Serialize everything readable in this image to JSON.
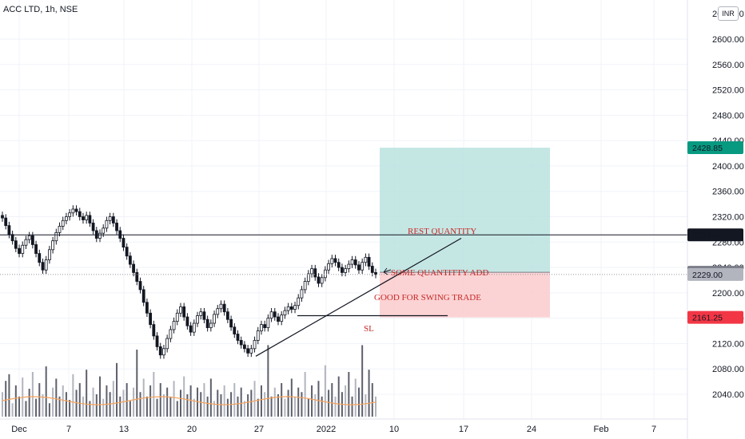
{
  "header": {
    "title": "ACC LTD, 1h, NSE",
    "currency": "INR"
  },
  "chart_data": {
    "type": "candlestick",
    "symbol": "ACC LTD",
    "interval": "1h",
    "exchange": "NSE",
    "ylim": [
      2005,
      2645
    ],
    "y_ticks": [
      "2600.00",
      "2560.00",
      "2520.00",
      "2480.00",
      "2440.00",
      "2400.00",
      "2360.00",
      "2320.00",
      "2280.00",
      "2240.00",
      "2200.00",
      "2160.00",
      "2120.00",
      "2080.00",
      "2040.00"
    ],
    "x_ticks": [
      "Dec",
      "7",
      "13",
      "20",
      "27",
      "2022",
      "10",
      "17",
      "24",
      "Feb",
      "7"
    ],
    "price_labels": [
      {
        "value": "2428.85",
        "color": "#089981"
      },
      {
        "value": "2291.40",
        "color": "#131722"
      },
      {
        "value": "2232.40",
        "color": "#787b86"
      },
      {
        "value": "2229.00",
        "color": "#b2b5be"
      },
      {
        "value": "2161.25",
        "color": "#f23645"
      }
    ],
    "horizontal_line": 2291.4,
    "position": {
      "entry": 2232.4,
      "target": 2428.85,
      "stop": 2161.25,
      "target_color": "#b2dfdb",
      "stop_color": "#fccbcd"
    },
    "annotations": [
      {
        "text": "REST QUANTITY",
        "color": "#c62828"
      },
      {
        "text": "SOME QUANTITTY ADD",
        "color": "#c62828"
      },
      {
        "text": "GOOD FOR SWING TRADE",
        "color": "#c62828"
      },
      {
        "text": "SL",
        "color": "#c62828"
      }
    ],
    "trendline": [
      [
        2095,
        2100
      ],
      [
        2260,
        2286
      ]
    ],
    "support_line": 2164,
    "candles_close": [
      2318,
      2306,
      2292,
      2282,
      2270,
      2262,
      2275,
      2284,
      2290,
      2276,
      2262,
      2248,
      2236,
      2252,
      2268,
      2282,
      2295,
      2305,
      2314,
      2320,
      2326,
      2332,
      2328,
      2320,
      2315,
      2322,
      2310,
      2298,
      2286,
      2294,
      2302,
      2314,
      2320,
      2310,
      2298,
      2286,
      2272,
      2258,
      2245,
      2232,
      2218,
      2205,
      2185,
      2168,
      2150,
      2132,
      2115,
      2102,
      2112,
      2128,
      2142,
      2155,
      2168,
      2178,
      2162,
      2148,
      2138,
      2152,
      2164,
      2170,
      2158,
      2145,
      2152,
      2166,
      2175,
      2182,
      2170,
      2158,
      2146,
      2135,
      2125,
      2118,
      2112,
      2105,
      2112,
      2125,
      2140,
      2150,
      2145,
      2160,
      2170,
      2162,
      2155,
      2165,
      2172,
      2178,
      2174,
      2180,
      2192,
      2205,
      2218,
      2230,
      2238,
      2225,
      2215,
      2224,
      2236,
      2246,
      2254,
      2248,
      2240,
      2232,
      2238,
      2245,
      2252,
      2244,
      2236,
      2248,
      2256,
      2242,
      2232,
      2229
    ],
    "volume_profile": [
      22,
      32,
      38,
      12,
      28,
      18,
      35,
      14,
      25,
      40,
      16,
      30,
      20,
      45,
      12,
      26,
      34,
      18,
      28,
      22,
      15,
      38,
      24,
      30,
      18,
      42,
      14,
      26,
      20,
      36,
      16,
      28,
      22,
      32,
      48,
      18,
      24,
      30,
      14,
      26,
      60,
      22,
      34,
      18,
      28,
      40,
      16,
      30,
      20,
      26,
      18,
      32,
      14,
      24,
      36,
      20,
      28,
      16,
      26,
      22,
      30,
      18,
      34,
      14,
      24,
      20,
      28,
      16,
      22,
      30,
      18,
      26,
      14,
      20,
      24,
      32,
      16,
      28,
      22,
      64,
      18,
      26,
      20,
      30,
      16,
      24,
      34,
      18,
      26,
      22,
      40,
      16,
      28,
      20,
      32,
      18,
      46,
      24,
      30,
      18,
      36,
      22,
      28,
      40,
      18,
      34,
      26,
      64,
      20,
      42,
      30,
      18
    ]
  }
}
